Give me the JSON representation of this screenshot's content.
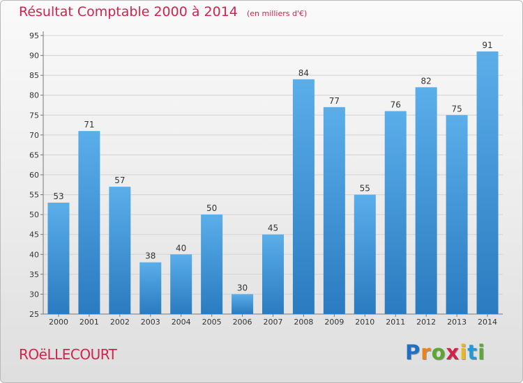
{
  "chart_data": {
    "type": "bar",
    "title": "Résultat Comptable 2000 à 2014",
    "subtitle": "(en milliers d'€)",
    "categories": [
      "2000",
      "2001",
      "2002",
      "2003",
      "2004",
      "2005",
      "2006",
      "2007",
      "2008",
      "2009",
      "2010",
      "2011",
      "2012",
      "2013",
      "2014"
    ],
    "values": [
      53,
      71,
      57,
      38,
      40,
      50,
      30,
      45,
      84,
      77,
      55,
      76,
      82,
      75,
      91
    ],
    "ylim": [
      25,
      95
    ],
    "yticks": [
      25,
      30,
      35,
      40,
      45,
      50,
      55,
      60,
      65,
      70,
      75,
      80,
      85,
      90,
      95
    ],
    "grid": true,
    "bar_color": "#3a8fd6"
  },
  "commune": "ROëLLECOURT",
  "logo": {
    "letters": [
      "P",
      "r",
      "o",
      "x",
      "i",
      "t",
      "i"
    ],
    "colors": [
      "#1f6fc4",
      "#e8831e",
      "#5aa832",
      "#d0234a",
      "#e8b81e",
      "#1f9ad6",
      "#5aa832"
    ]
  }
}
